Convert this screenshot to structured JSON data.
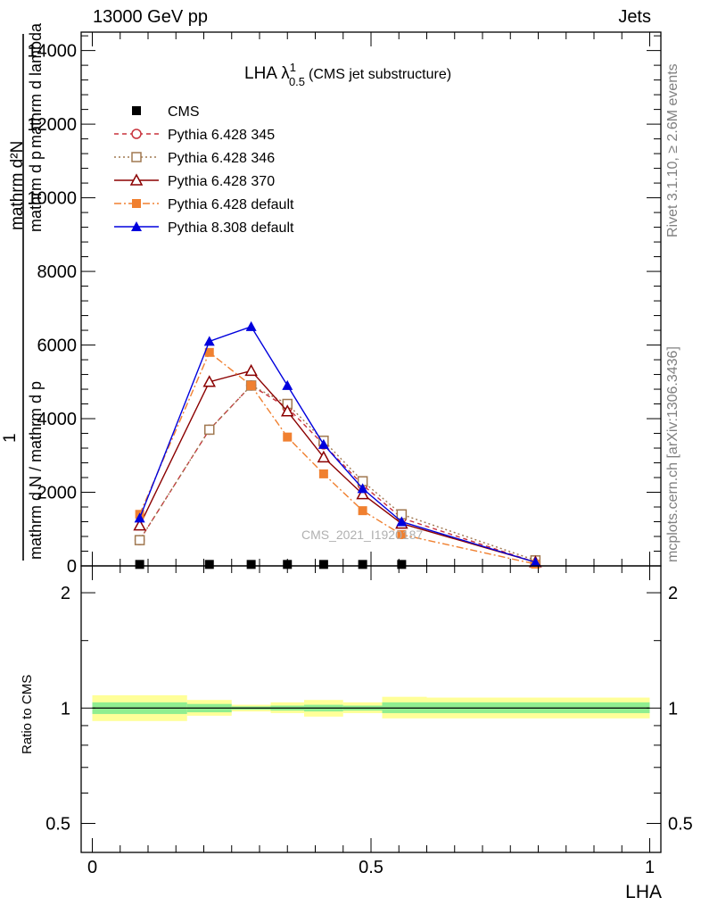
{
  "header": {
    "left": "13000 GeV pp",
    "right": "Jets"
  },
  "side_labels": {
    "rivet": "Rivet 3.1.10, ≥ 2.6M events",
    "mcplots": "mcplots.cern.ch [arXiv:1306.3436]"
  },
  "watermark": "CMS_2021_I1920187",
  "colors": {
    "band_inner": "#90ee90",
    "band_outer": "#ffff99"
  },
  "chart_data": [
    {
      "type": "line",
      "title": "LHA λ",
      "title_sup": "1",
      "title_sub": "0.5",
      "subtitle": "(CMS jet substructure)",
      "ylabel_num": "mathrm d²N",
      "ylabel_num_mid": "mathrm d p",
      "ylabel_num_after": "mathrm d lambda",
      "ylabel_one": "1",
      "ylabel_den": "mathrm d N / mathrm d p",
      "ylim": [
        0,
        14500
      ],
      "yticks": [
        0,
        2000,
        4000,
        6000,
        8000,
        10000,
        12000,
        14000
      ],
      "ytick_labels": [
        "0",
        "2000",
        "4000",
        "6000",
        "8000",
        "10000",
        "12000",
        "14000"
      ],
      "xlim": [
        -0.02,
        1.02
      ],
      "legend_position": "top-left",
      "series": [
        {
          "name": "CMS",
          "color": "#000000",
          "marker": "square-filled",
          "line": "none",
          "x": [
            0.085,
            0.21,
            0.285,
            0.35,
            0.415,
            0.485,
            0.555
          ],
          "y": [
            40,
            40,
            40,
            40,
            40,
            40,
            40
          ]
        },
        {
          "name": "Pythia 6.428 345",
          "color": "#c8323c",
          "marker": "circle-open",
          "line": "dashed",
          "x": [
            0.085,
            0.21,
            0.285,
            0.35,
            0.415,
            0.485,
            0.555,
            0.795
          ],
          "y": [
            700,
            3700,
            4900,
            4300,
            3300,
            2200,
            1300,
            100
          ]
        },
        {
          "name": "Pythia 6.428 346",
          "color": "#a07850",
          "marker": "square-open",
          "line": "dotted",
          "x": [
            0.085,
            0.21,
            0.285,
            0.35,
            0.415,
            0.485,
            0.555,
            0.795
          ],
          "y": [
            700,
            3700,
            4900,
            4400,
            3400,
            2300,
            1400,
            150
          ]
        },
        {
          "name": "Pythia 6.428 370",
          "color": "#8b0000",
          "marker": "triangle-open",
          "line": "solid",
          "x": [
            0.085,
            0.21,
            0.285,
            0.35,
            0.415,
            0.485,
            0.555,
            0.795
          ],
          "y": [
            1100,
            5000,
            5300,
            4200,
            2950,
            1950,
            1150,
            100
          ]
        },
        {
          "name": "Pythia 6.428 default",
          "color": "#f08030",
          "marker": "square-filled",
          "line": "dashdot",
          "x": [
            0.085,
            0.21,
            0.285,
            0.35,
            0.415,
            0.485,
            0.555,
            0.795
          ],
          "y": [
            1400,
            5800,
            4900,
            3500,
            2500,
            1500,
            850,
            50
          ]
        },
        {
          "name": "Pythia 8.308 default",
          "color": "#0000dd",
          "marker": "triangle-filled",
          "line": "solid",
          "x": [
            0.085,
            0.21,
            0.285,
            0.35,
            0.415,
            0.485,
            0.555,
            0.795
          ],
          "y": [
            1300,
            6100,
            6500,
            4900,
            3300,
            2100,
            1200,
            100
          ]
        }
      ]
    },
    {
      "type": "area",
      "ylabel": "Ratio to CMS",
      "xlabel": "LHA",
      "yscale": "log",
      "ylim": [
        0.42,
        2.35
      ],
      "yticks": [
        0.5,
        1,
        2
      ],
      "ytick_labels": [
        "0.5",
        "1",
        "2"
      ],
      "xlim": [
        -0.02,
        1.02
      ],
      "xticks": [
        0,
        0.5,
        1
      ],
      "xtick_labels": [
        "0",
        "0.5",
        "1"
      ],
      "reference_line": 1,
      "bins": [
        {
          "x0": 0.0,
          "x1": 0.17,
          "inner_lo": 0.965,
          "inner_hi": 1.035,
          "outer_lo": 0.925,
          "outer_hi": 1.08
        },
        {
          "x0": 0.17,
          "x1": 0.25,
          "inner_lo": 0.975,
          "inner_hi": 1.025,
          "outer_lo": 0.955,
          "outer_hi": 1.05
        },
        {
          "x0": 0.25,
          "x1": 0.32,
          "inner_lo": 0.99,
          "inner_hi": 1.01,
          "outer_lo": 0.98,
          "outer_hi": 1.02
        },
        {
          "x0": 0.32,
          "x1": 0.38,
          "inner_lo": 0.985,
          "inner_hi": 1.015,
          "outer_lo": 0.97,
          "outer_hi": 1.035
        },
        {
          "x0": 0.38,
          "x1": 0.45,
          "inner_lo": 0.98,
          "inner_hi": 1.02,
          "outer_lo": 0.95,
          "outer_hi": 1.05
        },
        {
          "x0": 0.45,
          "x1": 0.52,
          "inner_lo": 0.985,
          "inner_hi": 1.015,
          "outer_lo": 0.97,
          "outer_hi": 1.035
        },
        {
          "x0": 0.52,
          "x1": 0.6,
          "inner_lo": 0.97,
          "inner_hi": 1.035,
          "outer_lo": 0.94,
          "outer_hi": 1.07
        },
        {
          "x0": 0.6,
          "x1": 1.0,
          "inner_lo": 0.97,
          "inner_hi": 1.035,
          "outer_lo": 0.94,
          "outer_hi": 1.065
        }
      ]
    }
  ]
}
